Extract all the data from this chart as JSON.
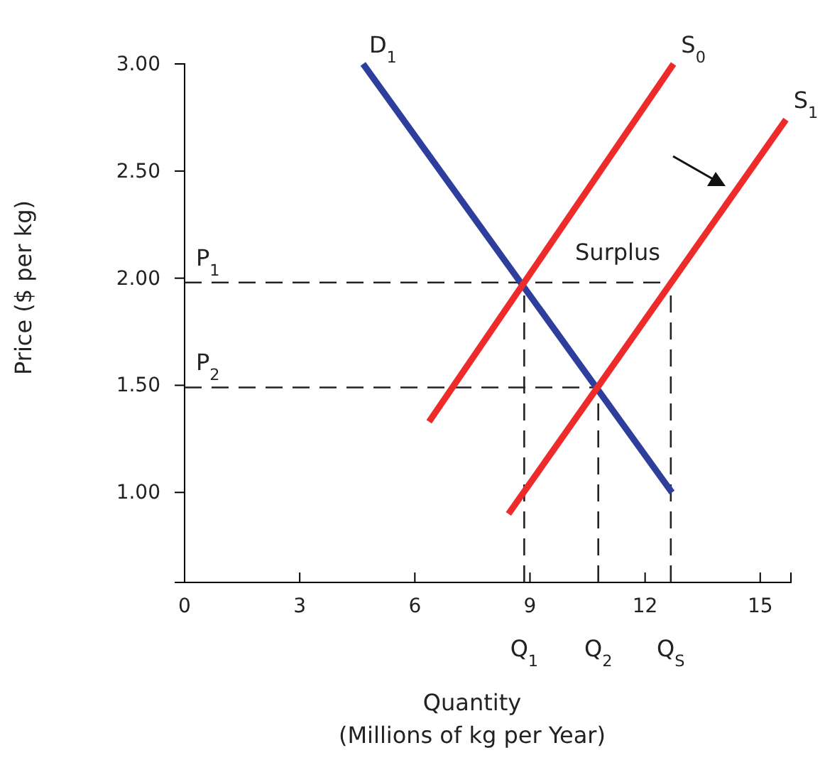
{
  "chart_data": {
    "type": "line",
    "xlabel": "Quantity\n(Millions of kg per Year)",
    "ylabel": "Price ($ per kg)",
    "xlim": [
      0,
      15.8
    ],
    "ylim": [
      0.58,
      3.0
    ],
    "xticks": [
      0,
      3,
      6,
      9,
      12,
      15
    ],
    "yticks": [
      {
        "value": 1.0,
        "label": "1.00"
      },
      {
        "value": 1.5,
        "label": "1.50"
      },
      {
        "value": 2.0,
        "label": "2.00"
      },
      {
        "value": 2.5,
        "label": "2.50"
      },
      {
        "value": 3.0,
        "label": "3.00"
      }
    ],
    "grid": false,
    "legend": false,
    "marker": "none",
    "series": [
      {
        "name": "D$_{1}$",
        "color": "#2e3e9c",
        "x": [
          4.65,
          12.7
        ],
        "values": [
          3.0,
          1.0
        ]
      },
      {
        "name": "S$_{0}$",
        "color": "#ee2b2b",
        "x": [
          6.37,
          12.74
        ],
        "values": [
          1.33,
          3.0
        ]
      },
      {
        "name": "S$_{1}$",
        "color": "#ee2b2b",
        "x": [
          8.44,
          15.67
        ],
        "values": [
          0.9,
          2.74
        ]
      }
    ],
    "ref_lines": [
      {
        "axis": "y",
        "value": 1.98,
        "label": "P$_{1}$",
        "color": "#222222",
        "line_style": "dashed"
      },
      {
        "axis": "y",
        "value": 1.49,
        "label": "P$_{2}$",
        "color": "#222222",
        "line_style": "dashed"
      },
      {
        "axis": "x",
        "value": 8.85,
        "label": "Q$_{1}$",
        "color": "#222222",
        "line_style": "dashed"
      },
      {
        "axis": "x",
        "value": 10.78,
        "label": "Q$_{2}$",
        "color": "#222222",
        "line_style": "dashed"
      },
      {
        "axis": "x",
        "value": 12.67,
        "label": "Q$_{S}$",
        "color": "#222222",
        "line_style": "dashed"
      }
    ],
    "annotations": [
      "Surplus"
    ]
  }
}
